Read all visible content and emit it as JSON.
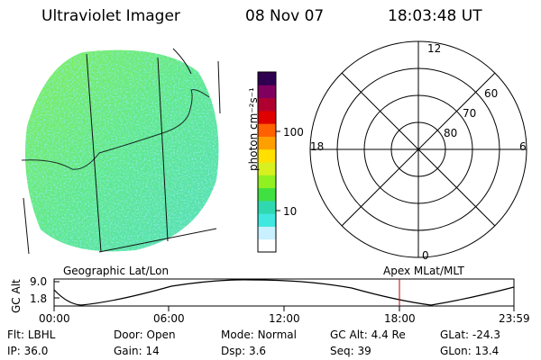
{
  "header": {
    "instrument": "Ultraviolet Imager",
    "date": "08 Nov 07",
    "time": "18:03:48 UT"
  },
  "colorbar": {
    "unit_label": "photon cm⁻²s⁻¹",
    "ticks": [
      "100",
      "10"
    ],
    "colors": [
      "#ffffff",
      "#c8f0ff",
      "#40e8e0",
      "#30d8b0",
      "#40e040",
      "#90f020",
      "#d8f020",
      "#ffe000",
      "#ffa000",
      "#ff6000",
      "#e00000",
      "#b00030",
      "#800060",
      "#300050"
    ]
  },
  "geo_image": {
    "caption": "Geographic Lat/Lon",
    "base_color": "#5ee88a",
    "speckle_colors": [
      "#3fd4c8",
      "#7df060",
      "#a8f040",
      "#55e0e0"
    ]
  },
  "polar_plot": {
    "caption": "Apex MLat/MLT",
    "mlt_labels": {
      "top": "12",
      "left": "18",
      "right": "6",
      "bottom": "0"
    },
    "lat_labels": [
      "60",
      "70",
      "80"
    ]
  },
  "altitude_plot": {
    "ylabel": "GC Alt",
    "yticks": [
      "9.0",
      "1.8"
    ],
    "xticks": [
      "00:00",
      "06:00",
      "12:00",
      "18:00",
      "23:59"
    ],
    "marker_color": "#c00000"
  },
  "footer": {
    "row1": [
      {
        "label": "Flt:",
        "value": "LBHL"
      },
      {
        "label": "Door:",
        "value": "Open"
      },
      {
        "label": "Mode:",
        "value": "Normal"
      },
      {
        "label": "GC Alt:",
        "value": "4.4 Re"
      },
      {
        "label": "GLat:",
        "value": "-24.3"
      }
    ],
    "row2": [
      {
        "label": "IP:",
        "value": "36.0"
      },
      {
        "label": "Gain:",
        "value": "14"
      },
      {
        "label": "Dsp:",
        "value": "3.6"
      },
      {
        "label": "Seq:",
        "value": "39"
      },
      {
        "label": "GLon:",
        "value": "13.4"
      }
    ]
  }
}
